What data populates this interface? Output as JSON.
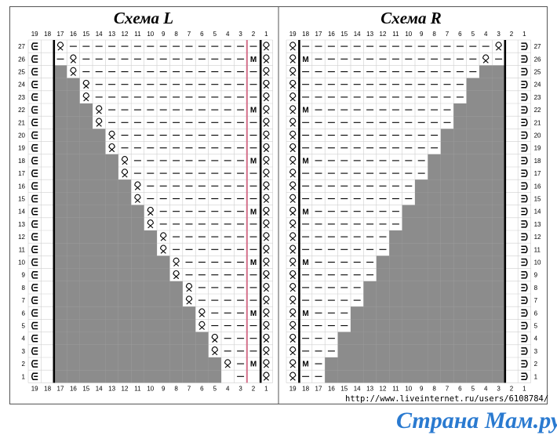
{
  "charts": {
    "L": {
      "title": "Схема L",
      "columns": [
        19,
        18,
        17,
        16,
        15,
        14,
        13,
        12,
        11,
        10,
        9,
        8,
        7,
        6,
        5,
        4,
        3,
        2,
        1
      ],
      "rows": [
        1,
        2,
        3,
        4,
        5,
        6,
        7,
        8,
        9,
        10,
        11,
        12,
        13,
        14,
        15,
        16,
        17,
        18,
        19,
        20,
        21,
        22,
        23,
        24,
        25,
        26,
        27
      ],
      "cast_on_symbol": "ᕮ",
      "purl_symbol": "—",
      "twist_symbol": "ℓ",
      "make_symbol": "M",
      "gray_color": "#8c8c8c",
      "edge_line_color": "#d4708a"
    },
    "R": {
      "title": "Схема R",
      "columns": [
        19,
        18,
        17,
        16,
        15,
        14,
        13,
        12,
        11,
        10,
        9,
        8,
        7,
        6,
        5,
        4,
        3,
        2,
        1
      ],
      "rows": [
        1,
        2,
        3,
        4,
        5,
        6,
        7,
        8,
        9,
        10,
        11,
        12,
        13,
        14,
        15,
        16,
        17,
        18,
        19,
        20,
        21,
        22,
        23,
        24,
        25,
        26,
        27
      ],
      "cast_on_symbol": "ᕭ",
      "purl_symbol": "—",
      "twist_symbol": "ℓ",
      "make_symbol": "M",
      "gray_color": "#8c8c8c"
    }
  },
  "footer": {
    "url": "http://www.liveinternet.ru/users/6108784/",
    "brand": "Страна Мам.ру"
  }
}
